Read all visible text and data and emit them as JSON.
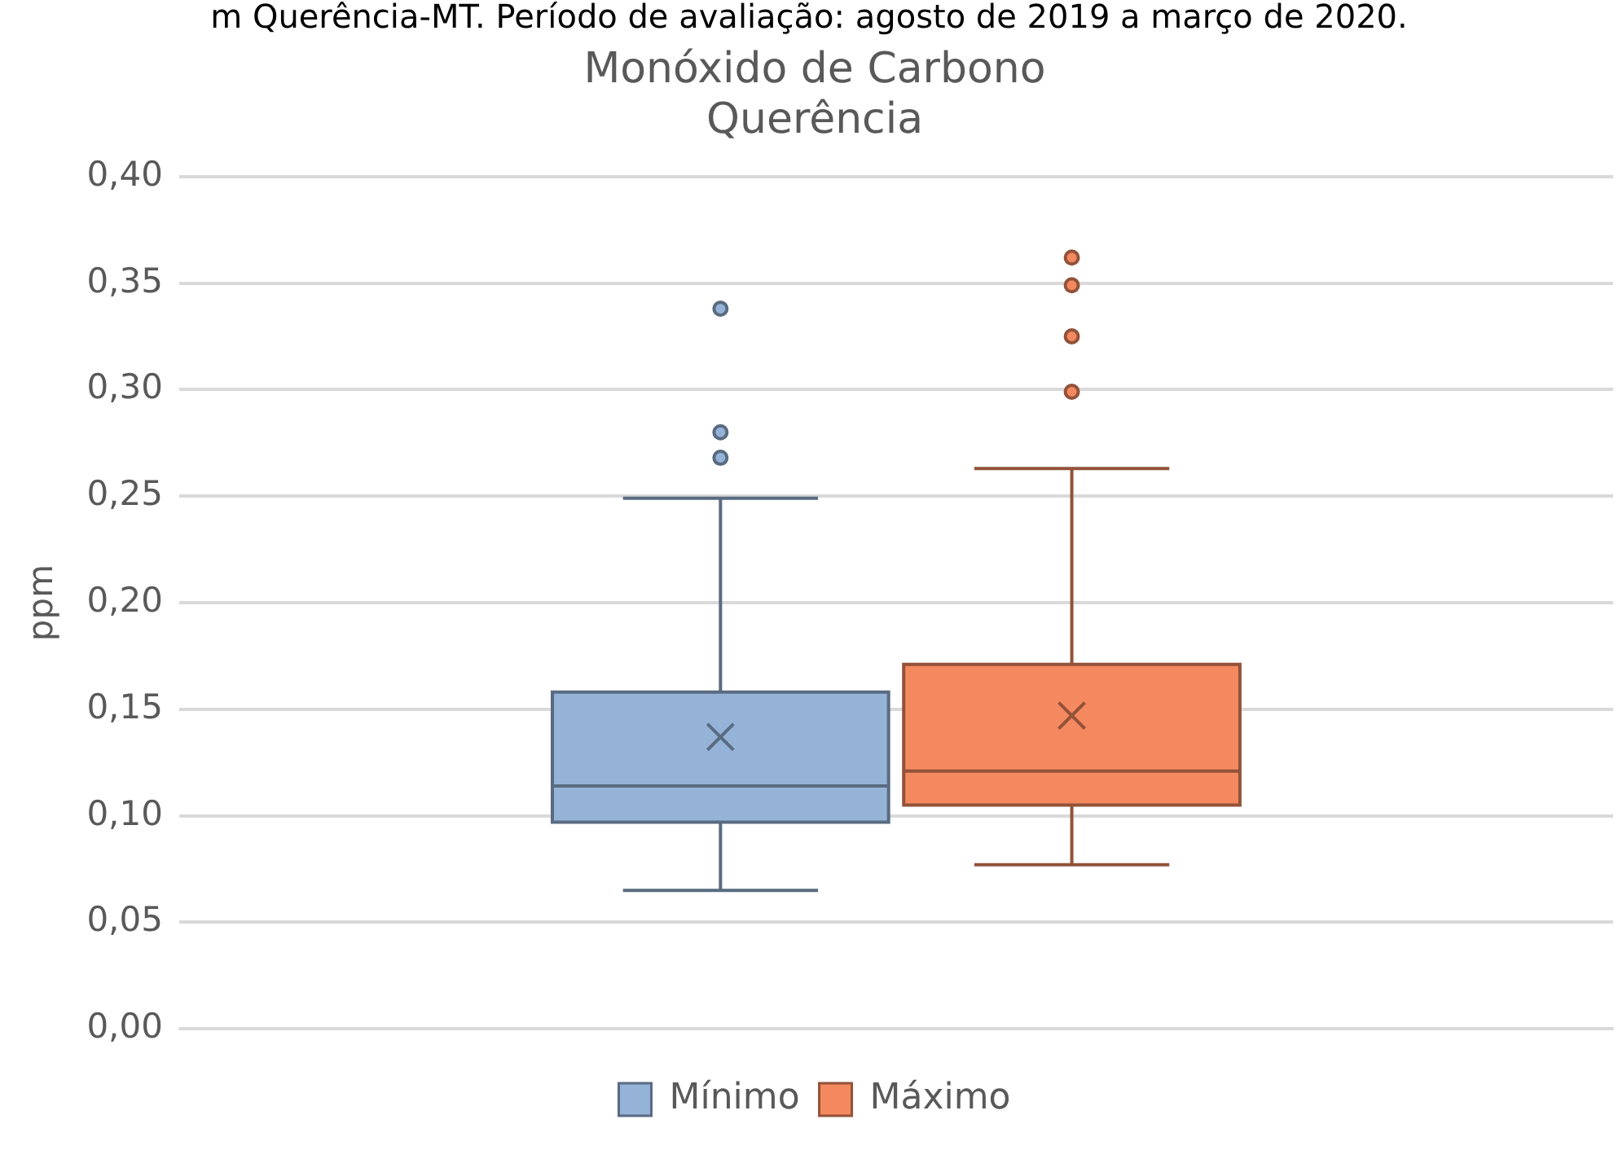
{
  "chart_data": {
    "type": "box",
    "title": "Monóxido de Carbono",
    "subtitle": "Querência",
    "ylabel": "ppm",
    "annotations": [
      "m Querência-MT. Período de avaliação: agosto de 2019 a março de 2020."
    ],
    "categories": [
      null
    ],
    "series": [
      {
        "name": "Mínimo",
        "color": "#95b3d7",
        "boxes": [
          {
            "low": 0.065,
            "q1": 0.097,
            "median": 0.114,
            "q3": 0.158,
            "high": 0.249,
            "mean": 0.137,
            "outliers": [
              0.268,
              0.28,
              0.338
            ]
          }
        ]
      },
      {
        "name": "Máximo",
        "color": "#f4895f",
        "boxes": [
          {
            "low": 0.077,
            "q1": 0.105,
            "median": 0.121,
            "q3": 0.171,
            "high": 0.263,
            "mean": 0.147,
            "outliers": [
              0.299,
              0.325,
              0.349,
              0.362
            ]
          }
        ]
      }
    ],
    "ylim": [
      0,
      0.4
    ],
    "yticks": [
      {
        "value": 0,
        "label": "0,00"
      },
      {
        "value": 0.05,
        "label": "0,05"
      },
      {
        "value": 0.1,
        "label": "0,10"
      },
      {
        "value": 0.15,
        "label": "0,15"
      },
      {
        "value": 0.2,
        "label": "0,20"
      },
      {
        "value": 0.25,
        "label": "0,25"
      },
      {
        "value": 0.3,
        "label": "0,30"
      },
      {
        "value": 0.35,
        "label": "0,35"
      },
      {
        "value": 0.4,
        "label": "0,40"
      }
    ],
    "grid": "y",
    "legend": "bottom",
    "marker": "circle"
  }
}
